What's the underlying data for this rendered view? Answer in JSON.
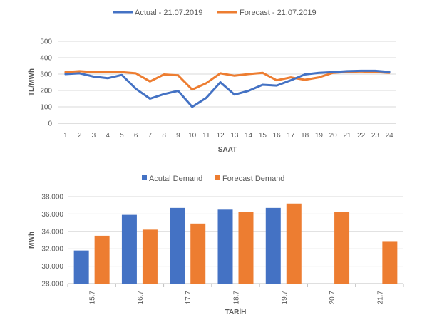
{
  "chart_data": [
    {
      "type": "line",
      "title": "",
      "xlabel": "SAAT",
      "ylabel": "TL/MWh",
      "ylim": [
        0,
        500
      ],
      "yticks": [
        "0",
        "100",
        "200",
        "300",
        "400",
        "500"
      ],
      "grid": true,
      "legend_position": "top",
      "categories": [
        "1",
        "2",
        "3",
        "4",
        "5",
        "6",
        "7",
        "8",
        "9",
        "10",
        "11",
        "12",
        "13",
        "14",
        "15",
        "16",
        "17",
        "18",
        "19",
        "20",
        "21",
        "22",
        "23",
        "24"
      ],
      "series": [
        {
          "name": "Actual - 21.07.2019",
          "color": "#4472C4",
          "values": [
            300,
            305,
            285,
            275,
            295,
            210,
            150,
            178,
            198,
            100,
            155,
            250,
            175,
            198,
            235,
            230,
            262,
            298,
            308,
            312,
            318,
            320,
            320,
            313
          ]
        },
        {
          "name": "Forecast - 21.07.2019",
          "color": "#ED7D31",
          "values": [
            312,
            318,
            312,
            312,
            312,
            305,
            255,
            298,
            292,
            205,
            245,
            305,
            290,
            300,
            308,
            262,
            280,
            265,
            280,
            308,
            313,
            316,
            313,
            308
          ]
        }
      ]
    },
    {
      "type": "bar",
      "title": "",
      "xlabel": "TARİH",
      "ylabel": "MWh",
      "ylim": [
        28000,
        38000
      ],
      "yticks": [
        "28.000",
        "30.000",
        "32.000",
        "34.000",
        "36.000",
        "38.000"
      ],
      "grid": true,
      "legend_position": "top",
      "categories": [
        "15.7",
        "16.7",
        "17.7",
        "18.7",
        "19.7",
        "20.7",
        "21.7"
      ],
      "series": [
        {
          "name": "Acutal Demand",
          "color": "#4472C4",
          "values": [
            31800,
            35900,
            36700,
            36500,
            36700,
            null,
            null
          ]
        },
        {
          "name": "Forecast Demand",
          "color": "#ED7D31",
          "values": [
            33500,
            34200,
            34900,
            36200,
            37200,
            36200,
            32800
          ]
        }
      ]
    }
  ]
}
